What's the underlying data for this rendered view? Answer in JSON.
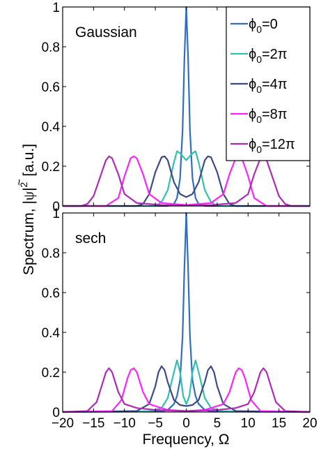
{
  "figure": {
    "ylabel_main": "Spectrum, |",
    "ylabel_psi": "ψ",
    "ylabel_tilde": "~",
    "ylabel_sup": "2",
    "ylabel_bar": "|",
    "ylabel_unit": "[a.u.]",
    "xlabel": "Frequency, Ω"
  },
  "legend": {
    "placement": "top-right",
    "entries": [
      {
        "base": "ϕ",
        "sub": "0",
        "value": "=0",
        "color": "#2f6fbd"
      },
      {
        "base": "ϕ",
        "sub": "0",
        "value": "=2π",
        "color": "#2fc0b0"
      },
      {
        "base": "ϕ",
        "sub": "0",
        "value": "=4π",
        "color": "#3c4a86"
      },
      {
        "base": "ϕ",
        "sub": "0",
        "value": "=8π",
        "color": "#ff22ff"
      },
      {
        "base": "ϕ",
        "sub": "0",
        "value": "=12π",
        "color": "#b02ab8"
      }
    ]
  },
  "chart_data": [
    {
      "type": "line",
      "panel_label": "Gaussian",
      "xlim": [
        -20,
        20
      ],
      "ylim": [
        0,
        1
      ],
      "xticks": [],
      "yticks": [
        0,
        0.2,
        0.4,
        0.6,
        0.8,
        1
      ],
      "ytick_labels": [
        "0",
        "0.2",
        "0.4",
        "0.6",
        "0.8",
        "1"
      ],
      "grid": false,
      "series": [
        {
          "key": "phi0",
          "color": "#2f6fbd",
          "x": [
            -20,
            -3,
            -2,
            -1.5,
            -1,
            -0.6,
            -0.3,
            0,
            0.3,
            0.6,
            1,
            1.5,
            2,
            3,
            20
          ],
          "y": [
            0,
            0,
            0.01,
            0.04,
            0.14,
            0.38,
            0.74,
            1.0,
            0.74,
            0.38,
            0.14,
            0.04,
            0.01,
            0,
            0
          ]
        },
        {
          "key": "phi2pi",
          "color": "#2fc0b0",
          "x": [
            -20,
            -5,
            -4,
            -3,
            -2,
            -1.5,
            -1,
            0,
            1,
            1.5,
            2,
            3,
            4,
            5,
            20
          ],
          "y": [
            0,
            0,
            0.02,
            0.08,
            0.22,
            0.275,
            0.265,
            0.23,
            0.265,
            0.275,
            0.22,
            0.08,
            0.02,
            0,
            0
          ]
        },
        {
          "key": "phi4pi",
          "color": "#3c4a86",
          "x": [
            -20,
            -8,
            -7,
            -6,
            -5,
            -4,
            -3.5,
            -3,
            -2,
            -1,
            0,
            1,
            2,
            3,
            3.5,
            4,
            5,
            6,
            7,
            8,
            20
          ],
          "y": [
            0,
            0,
            0.01,
            0.06,
            0.17,
            0.245,
            0.25,
            0.23,
            0.12,
            0.06,
            0.045,
            0.06,
            0.12,
            0.23,
            0.25,
            0.245,
            0.17,
            0.06,
            0.01,
            0,
            0
          ]
        },
        {
          "key": "phi8pi",
          "color": "#ff22ff",
          "x": [
            -20,
            -13,
            -11,
            -10,
            -9,
            -8.5,
            -8,
            -7,
            -6,
            -4,
            0,
            4,
            6,
            7,
            8,
            8.5,
            9,
            10,
            11,
            13,
            20
          ],
          "y": [
            0,
            0,
            0.04,
            0.15,
            0.24,
            0.25,
            0.24,
            0.16,
            0.06,
            0.015,
            0.005,
            0.015,
            0.06,
            0.16,
            0.24,
            0.25,
            0.24,
            0.15,
            0.04,
            0,
            0
          ]
        },
        {
          "key": "phi12pi",
          "color": "#b02ab8",
          "x": [
            -20,
            -17,
            -16,
            -15,
            -14,
            -13,
            -12.5,
            -12,
            -11,
            -10,
            -8,
            -4,
            0,
            4,
            8,
            10,
            11,
            12,
            12.5,
            13,
            14,
            15,
            16,
            17,
            20
          ],
          "y": [
            0,
            0,
            0.01,
            0.05,
            0.14,
            0.23,
            0.25,
            0.24,
            0.16,
            0.06,
            0.015,
            0.005,
            0.003,
            0.005,
            0.015,
            0.06,
            0.16,
            0.24,
            0.25,
            0.23,
            0.14,
            0.05,
            0.01,
            0,
            0
          ]
        }
      ]
    },
    {
      "type": "line",
      "panel_label": "sech",
      "xlim": [
        -20,
        20
      ],
      "ylim": [
        0,
        1
      ],
      "xticks": [
        -20,
        -15,
        -10,
        -5,
        0,
        5,
        10,
        15,
        20
      ],
      "xtick_labels": [
        "−20",
        "−15",
        "−10",
        "−5",
        "0",
        "5",
        "10",
        "15",
        "20"
      ],
      "yticks": [
        0,
        0.2,
        0.4,
        0.6,
        0.8,
        1
      ],
      "ytick_labels": [
        "0",
        "0.2",
        "0.4",
        "0.6",
        "0.8",
        "1"
      ],
      "grid": false,
      "series": [
        {
          "key": "phi0",
          "color": "#2f6fbd",
          "x": [
            -20,
            -4,
            -3,
            -2,
            -1.5,
            -1,
            -0.6,
            -0.3,
            0,
            0.3,
            0.6,
            1,
            1.5,
            2,
            3,
            4,
            20
          ],
          "y": [
            0,
            0.003,
            0.01,
            0.04,
            0.08,
            0.16,
            0.38,
            0.72,
            1.0,
            0.72,
            0.38,
            0.16,
            0.08,
            0.04,
            0.01,
            0.003,
            0
          ]
        },
        {
          "key": "phi2pi",
          "color": "#2fc0b0",
          "x": [
            -20,
            -6,
            -4,
            -3,
            -2,
            -1.5,
            -1,
            -0.5,
            0,
            0.5,
            1,
            1.5,
            2,
            3,
            4,
            6,
            20
          ],
          "y": [
            0,
            0.003,
            0.02,
            0.07,
            0.2,
            0.26,
            0.2,
            0.08,
            0.04,
            0.08,
            0.2,
            0.26,
            0.2,
            0.07,
            0.02,
            0.003,
            0
          ]
        },
        {
          "key": "phi4pi",
          "color": "#3c4a86",
          "x": [
            -20,
            -8,
            -6,
            -5,
            -4.5,
            -4,
            -3.5,
            -3,
            -2,
            -1,
            0,
            1,
            2,
            3,
            3.5,
            4,
            4.5,
            5,
            6,
            8,
            20
          ],
          "y": [
            0,
            0.005,
            0.04,
            0.13,
            0.2,
            0.23,
            0.21,
            0.15,
            0.06,
            0.035,
            0.03,
            0.035,
            0.06,
            0.15,
            0.21,
            0.23,
            0.2,
            0.13,
            0.04,
            0.005,
            0
          ]
        },
        {
          "key": "phi8pi",
          "color": "#ff22ff",
          "x": [
            -20,
            -12,
            -10.5,
            -9.5,
            -9,
            -8.5,
            -8,
            -7,
            -6,
            -5,
            -3,
            0,
            3,
            5,
            6,
            7,
            8,
            8.5,
            9,
            9.5,
            10.5,
            12,
            20
          ],
          "y": [
            0,
            0.005,
            0.06,
            0.17,
            0.21,
            0.22,
            0.2,
            0.1,
            0.04,
            0.03,
            0.01,
            0.005,
            0.01,
            0.03,
            0.04,
            0.1,
            0.2,
            0.22,
            0.21,
            0.17,
            0.06,
            0.005,
            0
          ]
        },
        {
          "key": "phi12pi",
          "color": "#b02ab8",
          "x": [
            -20,
            -16,
            -14.5,
            -13.5,
            -13,
            -12.5,
            -12,
            -11,
            -10,
            -8,
            -5,
            0,
            5,
            8,
            10,
            11,
            12,
            12.5,
            13,
            13.5,
            14.5,
            16,
            20
          ],
          "y": [
            0,
            0.005,
            0.05,
            0.15,
            0.2,
            0.22,
            0.2,
            0.1,
            0.04,
            0.02,
            0.01,
            0.005,
            0.01,
            0.02,
            0.04,
            0.1,
            0.2,
            0.22,
            0.2,
            0.15,
            0.05,
            0.005,
            0
          ]
        }
      ]
    }
  ]
}
